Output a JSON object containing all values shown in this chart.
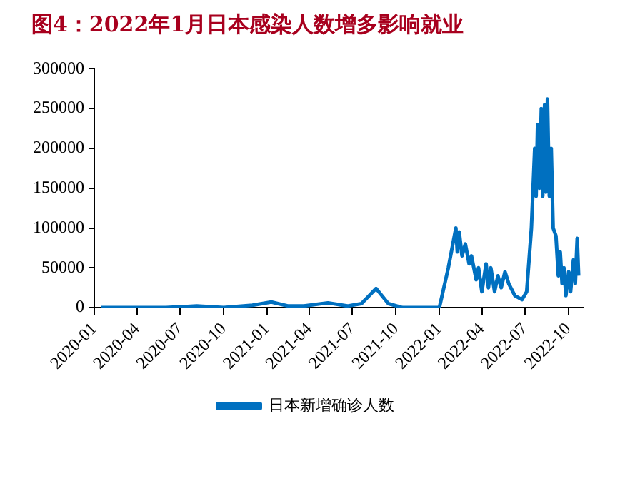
{
  "chart_data": {
    "type": "line",
    "title": "图4：2022年1月日本感染人数增多影响就业",
    "x": [
      "2020-01-15",
      "2020-04-15",
      "2020-06-01",
      "2020-08-05",
      "2020-10-01",
      "2020-12-01",
      "2021-01-10",
      "2021-02-15",
      "2021-03-20",
      "2021-05-10",
      "2021-06-20",
      "2021-07-20",
      "2021-08-20",
      "2021-09-15",
      "2021-10-15",
      "2021-12-15",
      "2022-01-01",
      "2022-01-20",
      "2022-02-05",
      "2022-02-08",
      "2022-02-12",
      "2022-02-18",
      "2022-02-25",
      "2022-03-05",
      "2022-03-10",
      "2022-03-20",
      "2022-03-25",
      "2022-04-01",
      "2022-04-10",
      "2022-04-15",
      "2022-04-20",
      "2022-04-28",
      "2022-05-05",
      "2022-05-12",
      "2022-05-20",
      "2022-05-28",
      "2022-06-10",
      "2022-06-25",
      "2022-07-05",
      "2022-07-15",
      "2022-07-22",
      "2022-07-25",
      "2022-07-28",
      "2022-08-01",
      "2022-08-05",
      "2022-08-08",
      "2022-08-12",
      "2022-08-15",
      "2022-08-18",
      "2022-08-22",
      "2022-08-26",
      "2022-08-30",
      "2022-09-05",
      "2022-09-10",
      "2022-09-14",
      "2022-09-18",
      "2022-09-22",
      "2022-09-26",
      "2022-10-02",
      "2022-10-06",
      "2022-10-12",
      "2022-10-16",
      "2022-10-20",
      "2022-10-23"
    ],
    "series": [
      {
        "name": "日本新增确诊人数",
        "color": "#0070c0",
        "values": [
          0,
          0,
          0,
          2000,
          0,
          3000,
          7000,
          2000,
          2000,
          6000,
          2000,
          5000,
          24000,
          5000,
          0,
          0,
          0,
          50000,
          100000,
          70000,
          95000,
          65000,
          80000,
          55000,
          65000,
          35000,
          50000,
          20000,
          55000,
          25000,
          50000,
          20000,
          40000,
          25000,
          45000,
          30000,
          15000,
          10000,
          20000,
          100000,
          200000,
          140000,
          230000,
          150000,
          250000,
          140000,
          255000,
          145000,
          262000,
          140000,
          200000,
          100000,
          90000,
          40000,
          70000,
          30000,
          50000,
          15000,
          45000,
          20000,
          60000,
          30000,
          87000,
          40000
        ]
      }
    ],
    "xlim": [
      "2020-01-01",
      "2022-11-01"
    ],
    "xticks": [
      {
        "value": "2020-01-01",
        "label": "2020-01"
      },
      {
        "value": "2020-04-01",
        "label": "2020-04"
      },
      {
        "value": "2020-07-01",
        "label": "2020-07"
      },
      {
        "value": "2020-10-01",
        "label": "2020-10"
      },
      {
        "value": "2021-01-01",
        "label": "2021-01"
      },
      {
        "value": "2021-04-01",
        "label": "2021-04"
      },
      {
        "value": "2021-07-01",
        "label": "2021-07"
      },
      {
        "value": "2021-10-01",
        "label": "2021-10"
      },
      {
        "value": "2022-01-01",
        "label": "2022-01"
      },
      {
        "value": "2022-04-01",
        "label": "2022-04"
      },
      {
        "value": "2022-07-01",
        "label": "2022-07"
      },
      {
        "value": "2022-10-01",
        "label": "2022-10"
      }
    ],
    "ylim": [
      0,
      300000
    ],
    "yticks": [
      0,
      50000,
      100000,
      150000,
      200000,
      250000,
      300000
    ],
    "grid": false,
    "legend": "bottom",
    "marker": "none",
    "line_style": "solid"
  }
}
